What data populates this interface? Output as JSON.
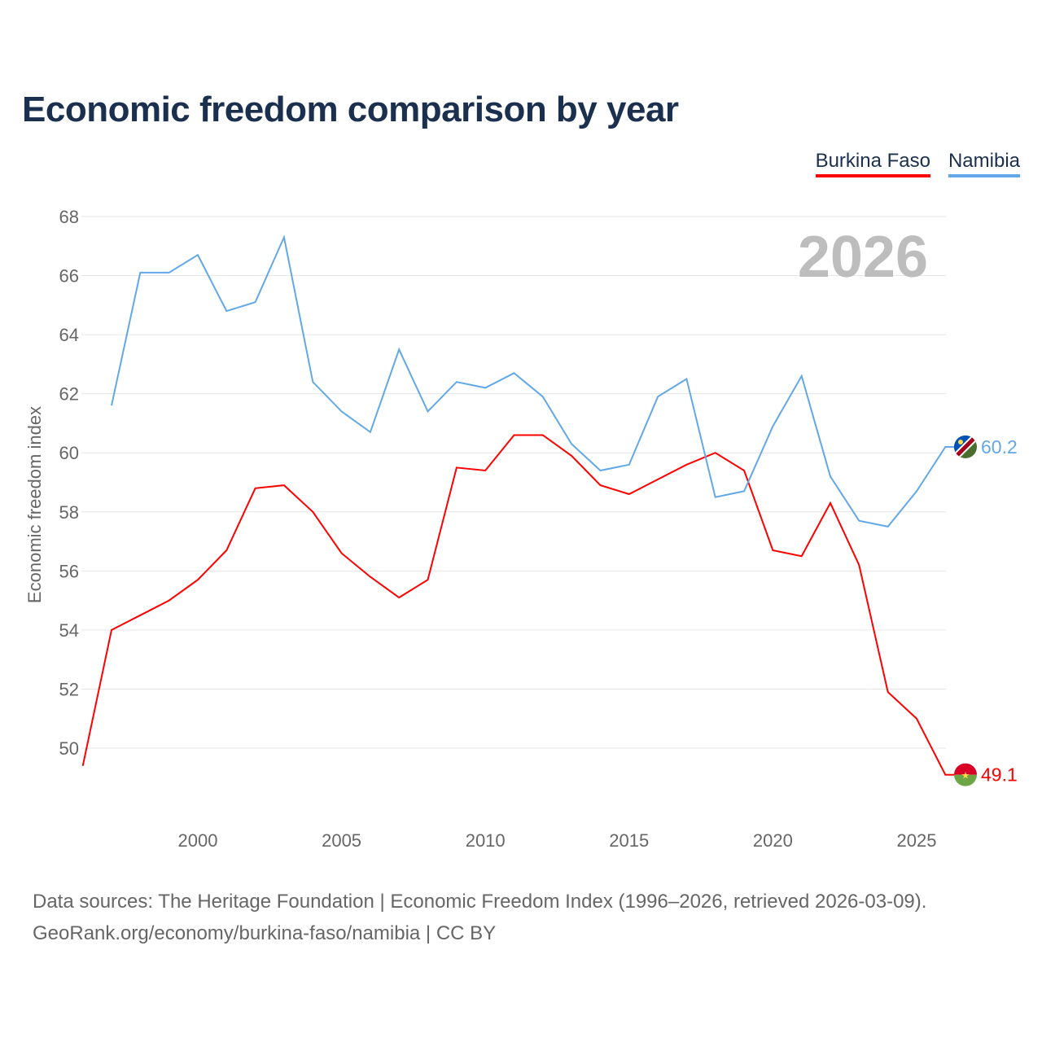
{
  "title": "Economic freedom comparison by year",
  "chart_data": {
    "type": "line",
    "title": "Economic freedom comparison by year",
    "ylabel": "Economic freedom index",
    "xlabel": "",
    "ylim": [
      48,
      68.5
    ],
    "xlim": [
      1996,
      2026
    ],
    "yticks": [
      50,
      52,
      54,
      56,
      58,
      60,
      62,
      64,
      66,
      68
    ],
    "xticks": [
      2000,
      2005,
      2010,
      2015,
      2020,
      2025
    ],
    "grid": true,
    "legend_position": "top-right",
    "year_watermark": "2026",
    "series": [
      {
        "name": "Burkina Faso",
        "color": "#ff0000",
        "end_label": "49.1",
        "x": [
          1996,
          1997,
          1998,
          1999,
          2000,
          2001,
          2002,
          2003,
          2004,
          2005,
          2006,
          2007,
          2008,
          2009,
          2010,
          2011,
          2012,
          2013,
          2014,
          2015,
          2016,
          2017,
          2018,
          2019,
          2020,
          2021,
          2022,
          2023,
          2024,
          2025,
          2026
        ],
        "values": [
          49.4,
          54.0,
          54.5,
          55.0,
          55.7,
          56.7,
          58.8,
          58.9,
          58.0,
          56.6,
          55.8,
          55.1,
          55.7,
          59.5,
          59.4,
          60.6,
          60.6,
          59.9,
          58.9,
          58.6,
          59.1,
          59.6,
          60.0,
          59.4,
          56.7,
          56.5,
          58.3,
          56.2,
          51.9,
          51.0,
          49.1
        ]
      },
      {
        "name": "Namibia",
        "color": "#62a8e8",
        "end_label": "60.2",
        "x": [
          1997,
          1998,
          1999,
          2000,
          2001,
          2002,
          2003,
          2004,
          2005,
          2006,
          2007,
          2008,
          2009,
          2010,
          2011,
          2012,
          2013,
          2014,
          2015,
          2016,
          2017,
          2018,
          2019,
          2020,
          2021,
          2022,
          2023,
          2024,
          2025,
          2026
        ],
        "values": [
          61.6,
          66.1,
          66.1,
          66.7,
          64.8,
          65.1,
          67.3,
          62.4,
          61.4,
          60.7,
          63.5,
          61.4,
          62.4,
          62.2,
          62.7,
          61.9,
          60.3,
          59.4,
          59.6,
          61.9,
          62.5,
          58.5,
          58.7,
          60.9,
          62.6,
          59.2,
          57.7,
          57.5,
          58.7,
          60.2
        ]
      }
    ]
  },
  "source_line1": "Data sources: The Heritage Foundation | Economic Freedom Index (1996–2026, retrieved 2026-03-09).",
  "source_line2": "GeoRank.org/economy/burkina-faso/namibia | CC BY"
}
